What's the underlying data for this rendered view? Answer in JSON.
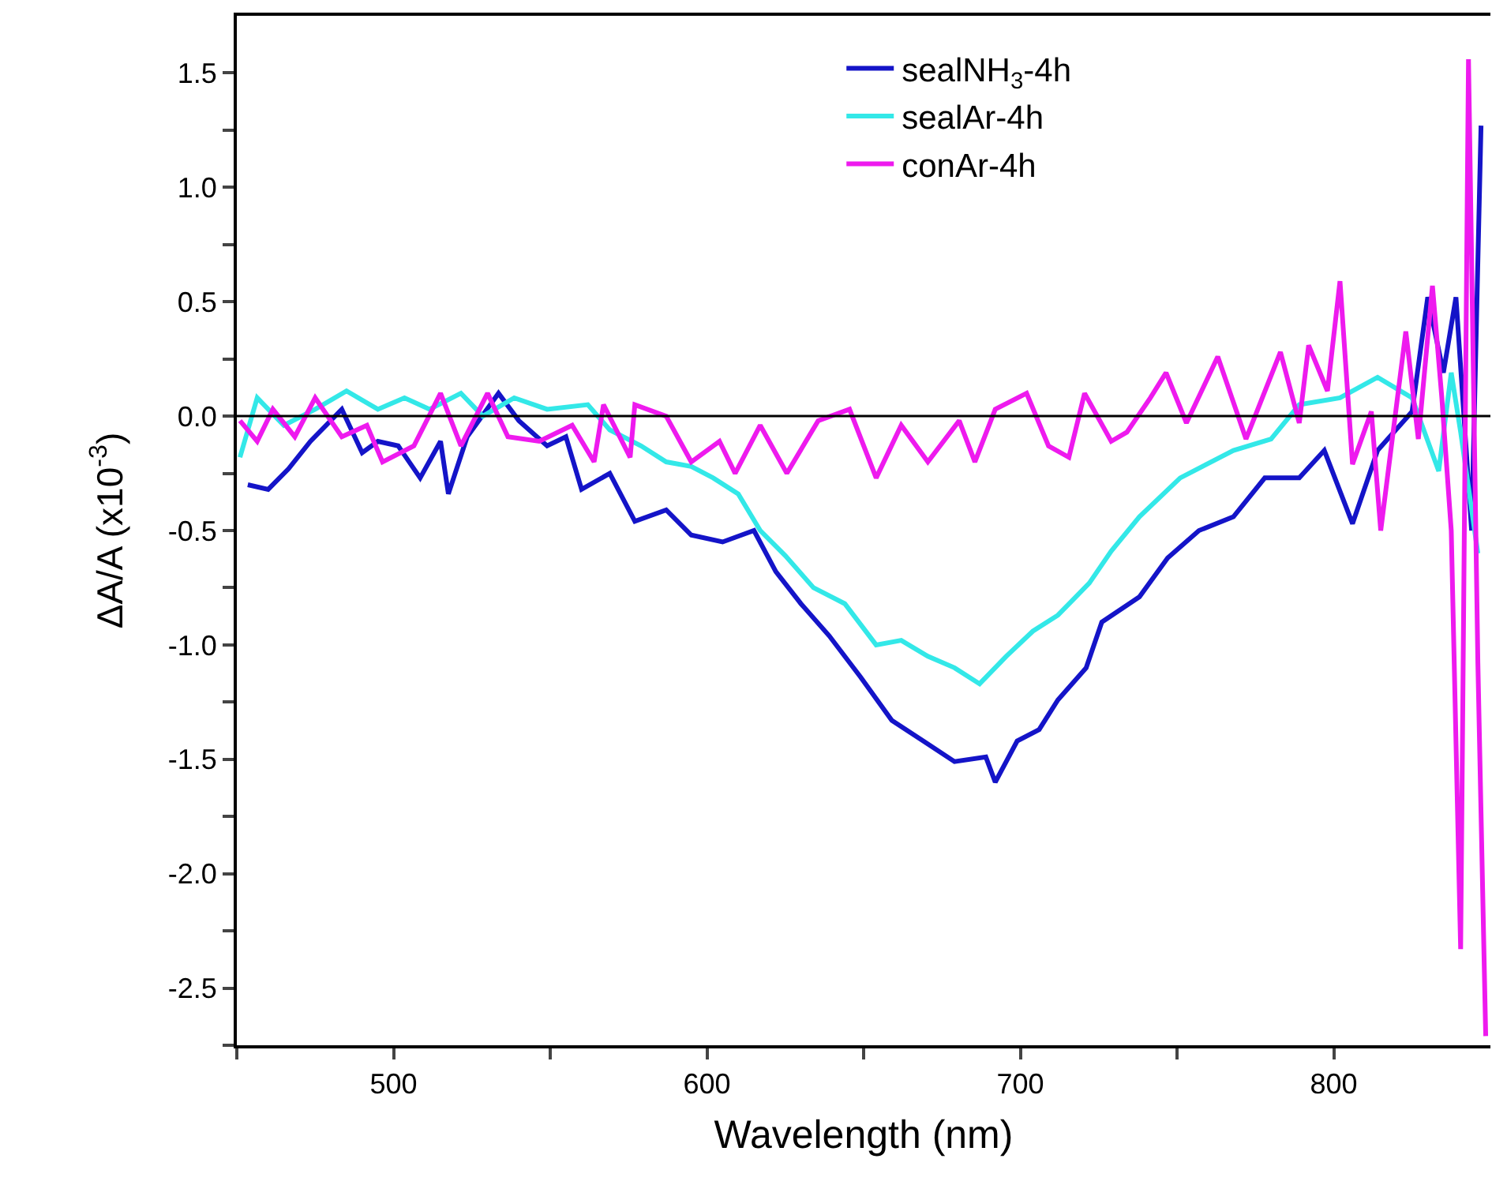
{
  "chart_data": {
    "type": "line",
    "xlabel": "Wavelength (nm)",
    "ylabel": "ΔA/A (x10$^{-3}$)",
    "xlim": [
      450,
      850
    ],
    "ylim": [
      -2.75,
      1.75
    ],
    "xticks": [
      {
        "value": 450,
        "label": null
      },
      500,
      {
        "value": 550,
        "label": null
      },
      600,
      {
        "value": 650,
        "label": null
      },
      700,
      {
        "value": 750,
        "label": null
      },
      800
    ],
    "yticks": [
      {
        "value": -2.75,
        "label": null
      },
      {
        "value": -2.5,
        "label": "-2.5"
      },
      {
        "value": -2.25,
        "label": null
      },
      {
        "value": -2,
        "label": "-2.0"
      },
      {
        "value": -1.75,
        "label": null
      },
      {
        "value": -1.5,
        "label": "-1.5"
      },
      {
        "value": -1.25,
        "label": null
      },
      {
        "value": -1,
        "label": "-1.0"
      },
      {
        "value": -0.75,
        "label": null
      },
      {
        "value": -0.5,
        "label": "-0.5"
      },
      {
        "value": -0.25,
        "label": null
      },
      {
        "value": 0,
        "label": "0.0"
      },
      {
        "value": 0.25,
        "label": null
      },
      {
        "value": 0.5,
        "label": "0.5"
      },
      {
        "value": 0.75,
        "label": null
      },
      {
        "value": 1,
        "label": "1.0"
      },
      {
        "value": 1.25,
        "label": null
      },
      {
        "value": 1.5,
        "label": "1.5"
      }
    ],
    "grid": false,
    "legend": "top right",
    "marker": "none",
    "line_style": "solid",
    "ref_lines": [
      {
        "axis": "y",
        "value": 0,
        "label": null,
        "color": "#000000"
      }
    ],
    "series": [
      {
        "name": "sealNH$_{3}$-4h",
        "color": "#1414c8",
        "x": [
          453.5,
          460,
          466.5,
          473.5,
          483.5,
          490,
          495,
          501.5,
          508.5,
          515,
          517.5,
          523.5,
          533.5,
          540,
          549,
          555,
          560,
          569,
          577,
          587,
          595,
          605,
          615,
          622,
          630,
          639,
          649,
          659,
          669,
          679,
          689,
          692,
          699,
          706,
          712,
          721,
          726,
          738,
          747,
          757,
          768,
          778,
          789,
          797,
          806,
          814,
          825,
          830,
          835,
          839,
          844,
          847
        ],
        "values": [
          -0.3,
          -0.32,
          -0.23,
          -0.11,
          0.03,
          -0.16,
          -0.11,
          -0.13,
          -0.27,
          -0.11,
          -0.34,
          -0.09,
          0.1,
          -0.02,
          -0.13,
          -0.09,
          -0.32,
          -0.25,
          -0.46,
          -0.41,
          -0.52,
          -0.55,
          -0.5,
          -0.68,
          -0.82,
          -0.96,
          -1.14,
          -1.33,
          -1.42,
          -1.51,
          -1.49,
          -1.6,
          -1.42,
          -1.37,
          -1.24,
          -1.1,
          -0.9,
          -0.79,
          -0.62,
          -0.5,
          -0.44,
          -0.27,
          -0.27,
          -0.15,
          -0.47,
          -0.15,
          0.02,
          0.52,
          0.19,
          0.52,
          -0.5,
          1.27
        ]
      },
      {
        "name": "sealAr-4h",
        "color": "#33e8e8",
        "x": [
          451,
          456.5,
          465,
          475,
          485,
          495,
          503.5,
          511.5,
          521.5,
          528.5,
          538.5,
          549,
          562,
          569,
          579,
          587,
          595,
          602,
          610,
          617,
          625,
          634,
          644,
          654,
          662,
          670.5,
          679,
          687,
          695.5,
          704,
          712,
          722,
          729,
          738,
          751,
          768,
          780,
          789,
          802,
          814,
          825,
          833.5,
          837.5,
          840.5,
          846
        ],
        "values": [
          -0.18,
          0.08,
          -0.04,
          0.03,
          0.11,
          0.03,
          0.08,
          0.03,
          0.1,
          0.0,
          0.08,
          0.03,
          0.05,
          -0.06,
          -0.13,
          -0.2,
          -0.22,
          -0.27,
          -0.34,
          -0.5,
          -0.61,
          -0.75,
          -0.82,
          -1.0,
          -0.98,
          -1.05,
          -1.1,
          -1.17,
          -1.05,
          -0.94,
          -0.87,
          -0.73,
          -0.59,
          -0.44,
          -0.27,
          -0.15,
          -0.1,
          0.05,
          0.08,
          0.17,
          0.08,
          -0.24,
          0.19,
          -0.07,
          -0.6
        ]
      },
      {
        "name": "conAr-4h",
        "color": "#ee1aee",
        "x": [
          451,
          456.5,
          461.5,
          468.5,
          475,
          483.5,
          491.5,
          496.5,
          506.5,
          515,
          521.5,
          530,
          536.5,
          546.5,
          557,
          564,
          567,
          575.5,
          577,
          587,
          595,
          604,
          609,
          617,
          625.5,
          635.5,
          645.5,
          654,
          662,
          670.5,
          680.5,
          685.5,
          692,
          702,
          709,
          715.5,
          720.5,
          729,
          734,
          741.5,
          746.5,
          753,
          763,
          772,
          783,
          789,
          792,
          798,
          802,
          806,
          812,
          815,
          823,
          827,
          831.5,
          834.5,
          837.5,
          840.5,
          843,
          846,
          848.5
        ],
        "values": [
          -0.02,
          -0.11,
          0.03,
          -0.09,
          0.08,
          -0.09,
          -0.04,
          -0.2,
          -0.13,
          0.1,
          -0.13,
          0.1,
          -0.09,
          -0.11,
          -0.04,
          -0.2,
          0.05,
          -0.18,
          0.05,
          0.0,
          -0.2,
          -0.11,
          -0.25,
          -0.04,
          -0.25,
          -0.02,
          0.03,
          -0.27,
          -0.04,
          -0.2,
          -0.02,
          -0.2,
          0.03,
          0.1,
          -0.13,
          -0.18,
          0.1,
          -0.11,
          -0.07,
          0.08,
          0.19,
          -0.03,
          0.26,
          -0.1,
          0.28,
          -0.03,
          0.31,
          0.11,
          0.59,
          -0.21,
          0.02,
          -0.5,
          0.37,
          -0.1,
          0.57,
          0.08,
          -0.5,
          -2.33,
          1.56,
          -1.08,
          -2.71
        ]
      }
    ]
  }
}
